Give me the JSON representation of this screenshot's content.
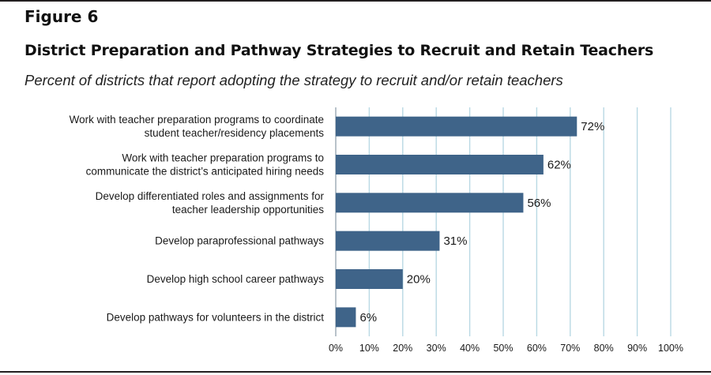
{
  "figure_label": "Figure 6",
  "title": "District Preparation and Pathway Strategies to Recruit and Retain Teachers",
  "subtitle": "Percent of districts that report adopting the strategy to recruit and/or retain teachers",
  "colors": {
    "bar": "#3f6489",
    "grid": "#b9d9e4",
    "rule": "#231f20"
  },
  "chart_data": {
    "type": "bar",
    "orientation": "horizontal",
    "categories": [
      [
        "Work with teacher preparation programs to coordinate",
        "student teacher/residency placements"
      ],
      [
        "Work with teacher preparation programs to",
        "communicate the district’s anticipated hiring needs"
      ],
      [
        "Develop differentiated roles and assignments for",
        "teacher leadership opportunities"
      ],
      [
        "Develop paraprofessional pathways"
      ],
      [
        "Develop high school career pathways"
      ],
      [
        "Develop pathways for volunteers in the district"
      ]
    ],
    "values": [
      72,
      62,
      56,
      31,
      20,
      6
    ],
    "value_labels": [
      "72%",
      "62%",
      "56%",
      "31%",
      "20%",
      "6%"
    ],
    "xlim": [
      0,
      100
    ],
    "xticks": [
      "0%",
      "10%",
      "20%",
      "30%",
      "40%",
      "50%",
      "60%",
      "70%",
      "80%",
      "90%",
      "100%"
    ],
    "grid": true,
    "legend": "none"
  }
}
